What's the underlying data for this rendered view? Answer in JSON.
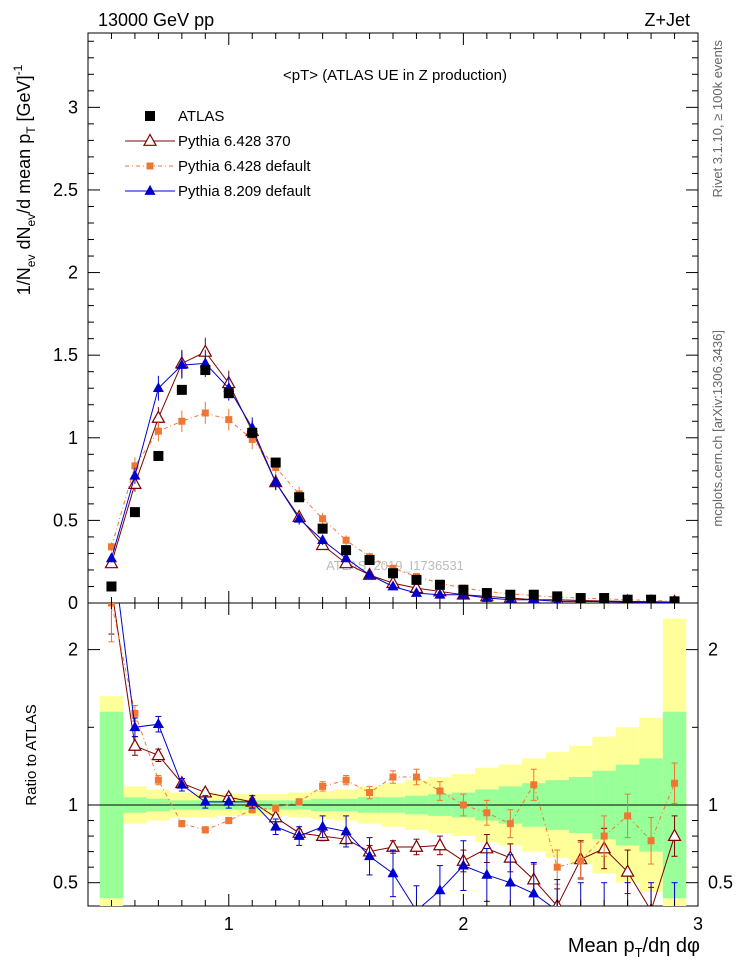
{
  "header": {
    "left": "13000 GeV pp",
    "right": "Z+Jet"
  },
  "chart_data": {
    "type": "scatter",
    "title": "<pT> (ATLAS UE in Z production)",
    "watermark": "ATLAS_2019_I1736531",
    "side_labels": {
      "rivet": "Rivet 3.1.10, ≥ 100k events",
      "mcplots": "mcplots.cern.ch [arXiv:1306.3436]"
    },
    "xlabel": "Mean p_T/dη dφ",
    "xlim": [
      0.4,
      3.0
    ],
    "xticks": [
      "1",
      "2",
      "3"
    ],
    "main": {
      "ylabel": "1/N_ev dN_ev/d mean p_T [GeV]^-1",
      "ylim": [
        0,
        3.45
      ],
      "yticks": [
        "0",
        "0.5",
        "1",
        "1.5",
        "2",
        "2.5",
        "3"
      ]
    },
    "ratio": {
      "ylabel": "Ratio to ATLAS",
      "ylim": [
        0.35,
        2.3
      ],
      "yticks": [
        "0.5",
        "1",
        "2"
      ]
    },
    "x": [
      0.5,
      0.6,
      0.7,
      0.8,
      0.9,
      1.0,
      1.1,
      1.2,
      1.3,
      1.4,
      1.5,
      1.6,
      1.7,
      1.8,
      1.9,
      2.0,
      2.1,
      2.2,
      2.3,
      2.4,
      2.5,
      2.6,
      2.7,
      2.8,
      2.9
    ],
    "series": [
      {
        "name": "ATLAS",
        "color": "#000000",
        "values": [
          0.1,
          0.55,
          0.89,
          1.29,
          1.41,
          1.27,
          1.03,
          0.85,
          0.64,
          0.45,
          0.32,
          0.26,
          0.18,
          0.14,
          0.11,
          0.08,
          0.06,
          0.05,
          0.05,
          0.04,
          0.03,
          0.03,
          0.02,
          0.02,
          0.01
        ],
        "ratio": []
      },
      {
        "name": "Pythia 6.428 370",
        "color": "#7f0000",
        "values": [
          0.24,
          0.72,
          1.12,
          1.45,
          1.52,
          1.33,
          1.04,
          0.73,
          0.52,
          0.35,
          0.24,
          0.17,
          0.12,
          0.09,
          0.07,
          0.05,
          0.04,
          0.03,
          0.02,
          0.02,
          0.015,
          0.012,
          0.01,
          0.008,
          0.006
        ],
        "ratio": [
          2.4,
          1.38,
          1.32,
          1.14,
          1.08,
          1.05,
          1.02,
          0.92,
          0.82,
          0.8,
          0.78,
          0.7,
          0.73,
          0.73,
          0.74,
          0.64,
          0.72,
          0.66,
          0.52,
          0.35,
          0.65,
          0.72,
          0.57,
          0.32,
          0.8
        ],
        "yerr": [
          0.3,
          0.06,
          0.04,
          0.03,
          0.02,
          0.02,
          0.02,
          0.02,
          0.02,
          0.03,
          0.03,
          0.04,
          0.04,
          0.05,
          0.06,
          0.07,
          0.09,
          0.09,
          0.1,
          0.11,
          0.12,
          0.13,
          0.14,
          0.15,
          0.13
        ]
      },
      {
        "name": "Pythia 6.428 default",
        "color": "#ee7733",
        "values": [
          0.34,
          0.83,
          1.04,
          1.1,
          1.15,
          1.11,
          0.99,
          0.82,
          0.66,
          0.51,
          0.38,
          0.28,
          0.21,
          0.16,
          0.12,
          0.09,
          0.07,
          0.055,
          0.045,
          0.035,
          0.03,
          0.025,
          0.02,
          0.015,
          0.012
        ],
        "ratio": [
          2.3,
          1.59,
          1.16,
          0.88,
          0.84,
          0.9,
          0.97,
          0.98,
          1.02,
          1.12,
          1.16,
          1.08,
          1.18,
          1.18,
          1.09,
          1.0,
          0.95,
          0.88,
          1.13,
          0.6,
          0.64,
          0.8,
          0.93,
          0.77,
          1.14
        ],
        "yerr": [
          0.25,
          0.05,
          0.03,
          0.02,
          0.02,
          0.02,
          0.02,
          0.02,
          0.02,
          0.03,
          0.03,
          0.04,
          0.04,
          0.05,
          0.06,
          0.07,
          0.08,
          0.09,
          0.1,
          0.11,
          0.12,
          0.13,
          0.14,
          0.15,
          0.13
        ]
      },
      {
        "name": "Pythia 8.209 default",
        "color": "#0000cc",
        "values": [
          0.27,
          0.77,
          1.3,
          1.44,
          1.45,
          1.3,
          1.06,
          0.73,
          0.51,
          0.38,
          0.27,
          0.17,
          0.1,
          0.06,
          0.05,
          0.05,
          0.03,
          0.02,
          0.02,
          0.01,
          0.01,
          0.008,
          0.006,
          0.004,
          0.003
        ],
        "ratio": [
          2.7,
          1.5,
          1.52,
          1.13,
          1.02,
          1.02,
          1.02,
          0.86,
          0.8,
          0.86,
          0.83,
          0.67,
          0.56,
          0.32,
          0.45,
          0.61,
          0.55,
          0.5,
          0.43,
          0.32,
          0.3,
          0.3,
          0.3,
          0.3,
          0.3
        ],
        "yerr": [
          0.3,
          0.06,
          0.05,
          0.04,
          0.04,
          0.04,
          0.04,
          0.05,
          0.06,
          0.07,
          0.1,
          0.12,
          0.15,
          0.16,
          0.16,
          0.16,
          0.17,
          0.18,
          0.2,
          0.2,
          0.2,
          0.2,
          0.2,
          0.2,
          0.2
        ]
      }
    ],
    "uncertainty_bands": {
      "inner_color": "#99ff99",
      "outer_color": "#ffff99",
      "inner_halfwidth": [
        0.6,
        0.05,
        0.04,
        0.03,
        0.03,
        0.03,
        0.03,
        0.03,
        0.03,
        0.04,
        0.04,
        0.05,
        0.05,
        0.06,
        0.07,
        0.08,
        0.1,
        0.12,
        0.14,
        0.16,
        0.18,
        0.22,
        0.26,
        0.3,
        0.6
      ],
      "outer_halfwidth": [
        0.7,
        0.12,
        0.1,
        0.08,
        0.08,
        0.07,
        0.07,
        0.07,
        0.08,
        0.09,
        0.1,
        0.12,
        0.14,
        0.16,
        0.18,
        0.2,
        0.24,
        0.26,
        0.3,
        0.34,
        0.38,
        0.44,
        0.5,
        0.56,
        1.2
      ]
    }
  }
}
